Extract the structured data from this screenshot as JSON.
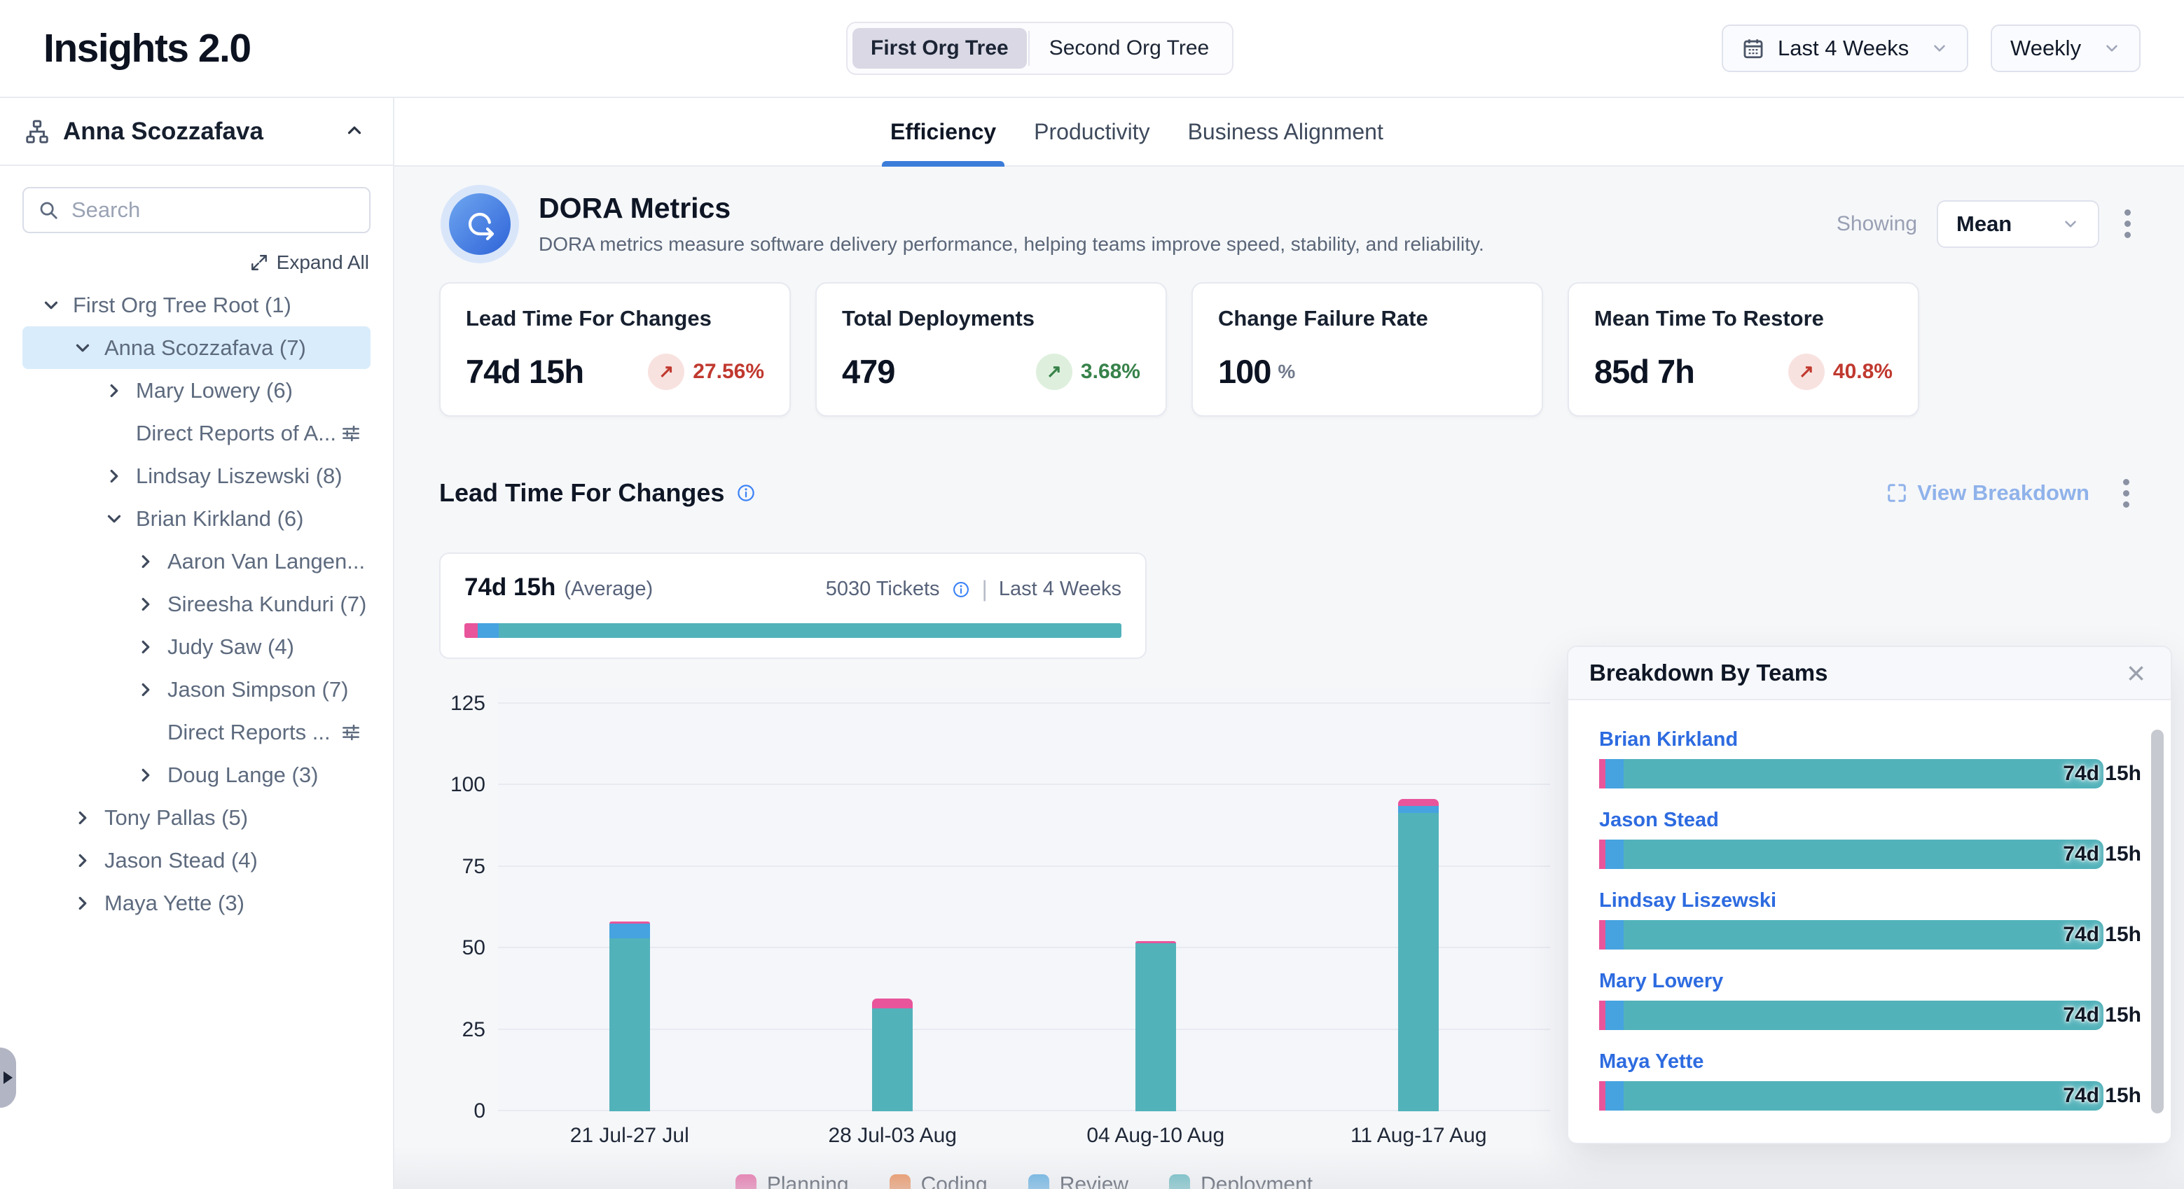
{
  "header": {
    "title": "Insights 2.0",
    "org_toggle": [
      "First Org Tree",
      "Second Org Tree"
    ],
    "active_org_tree": "First Org Tree",
    "date_range": "Last 4 Weeks",
    "granularity": "Weekly"
  },
  "sidebar": {
    "user": "Anna Scozzafava",
    "search_placeholder": "Search",
    "expand_all": "Expand All",
    "tree": [
      {
        "label": "First Org Tree Root (1)",
        "level": 0,
        "chevron": "down"
      },
      {
        "label": "Anna Scozzafava (7)",
        "level": 1,
        "chevron": "down",
        "selected": true
      },
      {
        "label": "Mary Lowery (6)",
        "level": 2,
        "chevron": "right"
      },
      {
        "label": "Direct Reports of A...",
        "level": 2,
        "chevron": "none",
        "filter": true
      },
      {
        "label": "Lindsay Liszewski (8)",
        "level": 2,
        "chevron": "right"
      },
      {
        "label": "Brian Kirkland (6)",
        "level": 2,
        "chevron": "down"
      },
      {
        "label": "Aaron Van Langen...",
        "level": 3,
        "chevron": "right"
      },
      {
        "label": "Sireesha Kunduri (7)",
        "level": 3,
        "chevron": "right"
      },
      {
        "label": "Judy Saw (4)",
        "level": 3,
        "chevron": "right"
      },
      {
        "label": "Jason Simpson (7)",
        "level": 3,
        "chevron": "right"
      },
      {
        "label": "Direct Reports ...",
        "level": 3,
        "chevron": "none",
        "filter": true
      },
      {
        "label": "Doug Lange (3)",
        "level": 3,
        "chevron": "right"
      },
      {
        "label": "Tony Pallas (5)",
        "level": 1,
        "chevron": "right"
      },
      {
        "label": "Jason Stead (4)",
        "level": 1,
        "chevron": "right"
      },
      {
        "label": "Maya Yette (3)",
        "level": 1,
        "chevron": "right"
      }
    ]
  },
  "tabs": [
    {
      "label": "Efficiency",
      "active": true
    },
    {
      "label": "Productivity",
      "active": false
    },
    {
      "label": "Business Alignment",
      "active": false
    }
  ],
  "dora": {
    "title": "DORA Metrics",
    "description": "DORA metrics measure software delivery performance, helping teams improve speed, stability, and reliability.",
    "showing_label": "Showing",
    "showing_value": "Mean"
  },
  "metric_cards": [
    {
      "title": "Lead Time For Changes",
      "value": "74d 15h",
      "unit": "",
      "delta": "27.56%",
      "trend": "up",
      "sentiment": "negative"
    },
    {
      "title": "Total Deployments",
      "value": "479",
      "unit": "",
      "delta": "3.68%",
      "trend": "up",
      "sentiment": "positive"
    },
    {
      "title": "Change Failure Rate",
      "value": "100",
      "unit": "%",
      "delta": "",
      "trend": "",
      "sentiment": ""
    },
    {
      "title": "Mean Time To Restore",
      "value": "85d 7h",
      "unit": "",
      "delta": "40.8%",
      "trend": "up",
      "sentiment": "negative"
    }
  ],
  "chart_section": {
    "title": "Lead Time For Changes",
    "view_breakdown": "View Breakdown",
    "summary": {
      "value": "74d 15h",
      "qualifier": "(Average)",
      "tickets": "5030 Tickets",
      "divider": "|",
      "period": "Last 4 Weeks",
      "segments": [
        {
          "series": "Planning",
          "pct": 2.0
        },
        {
          "series": "Review",
          "pct": 3.2
        },
        {
          "series": "Deployment",
          "pct": 94.8
        }
      ]
    }
  },
  "chart_data": {
    "type": "bar",
    "stacked": true,
    "categories": [
      "21 Jul-27 Jul",
      "28 Jul-03 Aug",
      "04 Aug-10 Aug",
      "11 Aug-17 Aug"
    ],
    "series": [
      {
        "name": "Planning",
        "color": "#e8559b",
        "values": [
          0.8,
          3.0,
          0.8,
          2.0
        ]
      },
      {
        "name": "Coding",
        "color": "#ec7d3c",
        "values": [
          0,
          0,
          0,
          0
        ]
      },
      {
        "name": "Review",
        "color": "#46a3e0",
        "values": [
          4.5,
          0,
          0,
          2.2
        ]
      },
      {
        "name": "Deployment",
        "color": "#52b2ba",
        "values": [
          53,
          31.5,
          51.5,
          91.5
        ]
      }
    ],
    "title": "Lead Time For Changes",
    "xlabel": "",
    "ylabel": "",
    "ylim": [
      0,
      125
    ],
    "yticks": [
      0,
      25,
      50,
      75,
      100,
      125
    ],
    "grid": true,
    "legend": [
      "Planning",
      "Coding",
      "Review",
      "Deployment"
    ],
    "legend_position": "bottom"
  },
  "breakdown_panel": {
    "title": "Breakdown By Teams",
    "teams": [
      {
        "name": "Brian Kirkland",
        "value": "74d 15h"
      },
      {
        "name": "Jason Stead",
        "value": "74d 15h"
      },
      {
        "name": "Lindsay Liszewski",
        "value": "74d 15h"
      },
      {
        "name": "Mary Lowery",
        "value": "74d 15h"
      },
      {
        "name": "Maya Yette",
        "value": "74d 15h"
      }
    ],
    "team_bar_segments": [
      {
        "series": "Planning",
        "pct": 1.3
      },
      {
        "series": "Review",
        "pct": 3.6
      },
      {
        "series": "Deployment",
        "pct": 95.1
      }
    ]
  },
  "colors": {
    "accent_blue": "#3c7cd9",
    "link_blue": "#2d6be0",
    "view_breakdown_blue": "#8fb2ea",
    "info_blue": "#3b82f6",
    "negative_text": "#c0392f",
    "negative_badge_bg": "#f8e2df",
    "positive_text": "#37824a",
    "positive_badge_bg": "#def0dd",
    "selected_tree_row": "#d9ecfb",
    "planning": "#e8559b",
    "coding": "#ec7d3c",
    "review": "#46a3e0",
    "deployment": "#52b2ba"
  }
}
